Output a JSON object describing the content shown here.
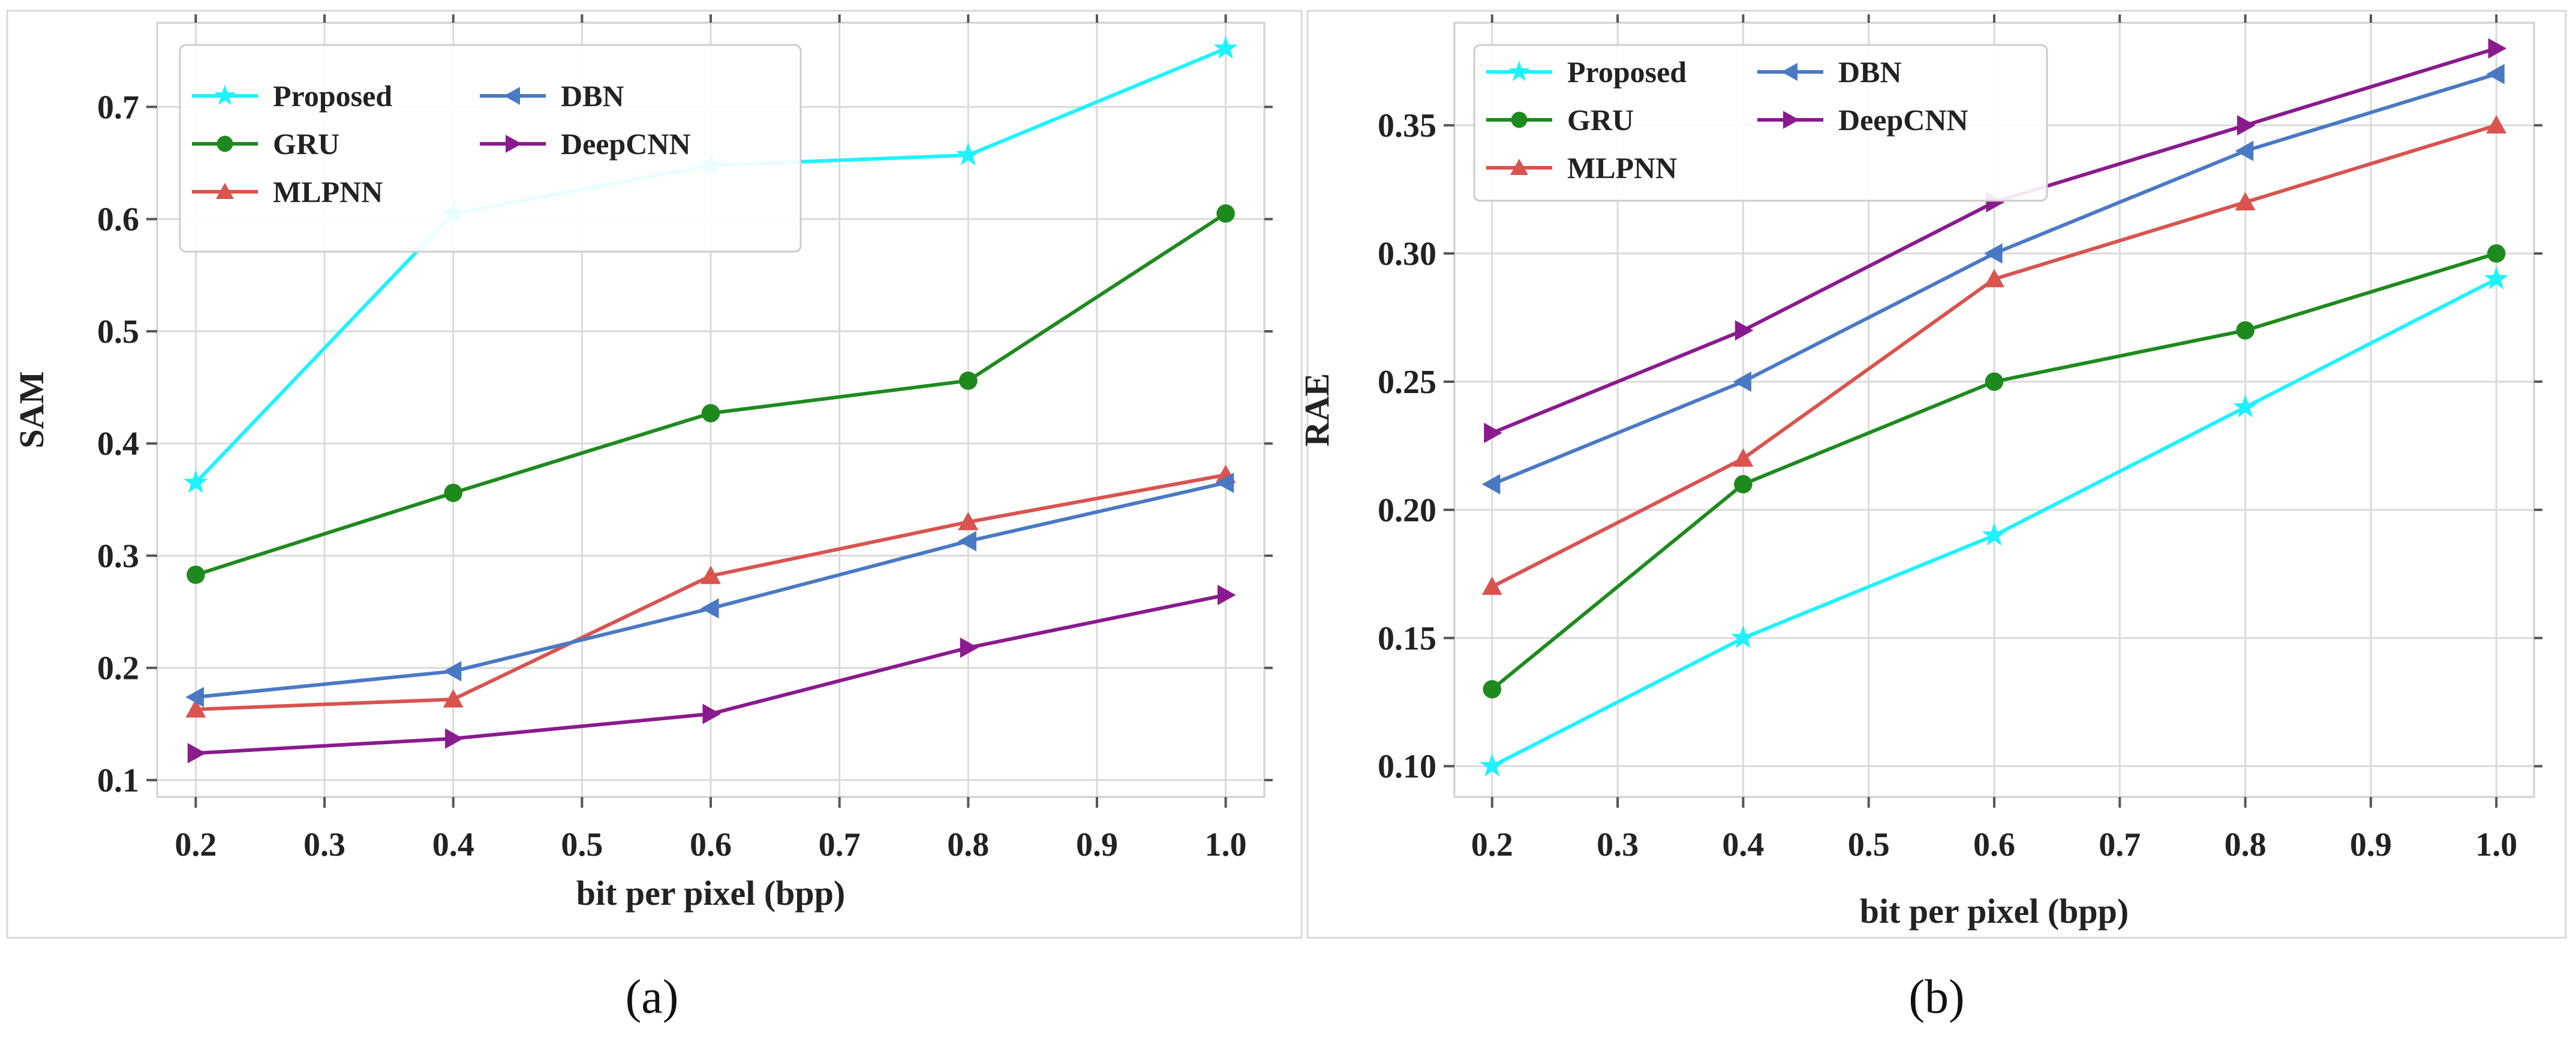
{
  "chart_data": [
    {
      "type": "line",
      "caption": "(a)",
      "xlabel": "bit per pixel (bpp)",
      "ylabel": "SAM",
      "x": [
        0.2,
        0.4,
        0.6,
        0.8,
        1.0
      ],
      "xticks": [
        "0.2",
        "0.3",
        "0.4",
        "0.5",
        "0.6",
        "0.7",
        "0.8",
        "0.9",
        "1.0"
      ],
      "xlim": [
        0.17,
        1.03
      ],
      "yticks": [
        "0.1",
        "0.2",
        "0.3",
        "0.4",
        "0.5",
        "0.6",
        "0.7"
      ],
      "ylim": [
        0.085,
        0.775
      ],
      "grid": true,
      "legend": "top-left",
      "series": [
        {
          "name": "Proposed",
          "color": "#1ef2ff",
          "marker": "star",
          "values": [
            0.365,
            0.605,
            0.648,
            0.657,
            0.752
          ]
        },
        {
          "name": "GRU",
          "color": "#1e8a1e",
          "marker": "circle",
          "values": [
            0.283,
            0.356,
            0.427,
            0.456,
            0.605
          ]
        },
        {
          "name": "MLPNN",
          "color": "#d9534f",
          "marker": "triangle-up",
          "values": [
            0.163,
            0.172,
            0.282,
            0.33,
            0.372
          ]
        },
        {
          "name": "DBN",
          "color": "#4a79c4",
          "marker": "triangle-left",
          "values": [
            0.174,
            0.197,
            0.253,
            0.313,
            0.365
          ]
        },
        {
          "name": "DeepCNN",
          "color": "#8a1a8e",
          "marker": "triangle-right",
          "values": [
            0.124,
            0.137,
            0.159,
            0.218,
            0.265
          ]
        }
      ]
    },
    {
      "type": "line",
      "caption": "(b)",
      "xlabel": "bit per pixel (bpp)",
      "ylabel": "RAE",
      "x": [
        0.2,
        0.4,
        0.6,
        0.8,
        1.0
      ],
      "xticks": [
        "0.2",
        "0.3",
        "0.4",
        "0.5",
        "0.6",
        "0.7",
        "0.8",
        "0.9",
        "1.0"
      ],
      "xlim": [
        0.17,
        1.03
      ],
      "yticks": [
        "0.10",
        "0.15",
        "0.20",
        "0.25",
        "0.30",
        "0.35"
      ],
      "ylim": [
        0.088,
        0.39
      ],
      "grid": true,
      "legend": "top-left",
      "series": [
        {
          "name": "Proposed",
          "color": "#1ef2ff",
          "marker": "star",
          "values": [
            0.1,
            0.15,
            0.19,
            0.24,
            0.29
          ]
        },
        {
          "name": "GRU",
          "color": "#1e8a1e",
          "marker": "circle",
          "values": [
            0.13,
            0.21,
            0.25,
            0.27,
            0.3
          ]
        },
        {
          "name": "MLPNN",
          "color": "#d9534f",
          "marker": "triangle-up",
          "values": [
            0.17,
            0.22,
            0.29,
            0.32,
            0.35
          ]
        },
        {
          "name": "DBN",
          "color": "#4a79c4",
          "marker": "triangle-left",
          "values": [
            0.21,
            0.25,
            0.3,
            0.34,
            0.37
          ]
        },
        {
          "name": "DeepCNN",
          "color": "#8a1a8e",
          "marker": "triangle-right",
          "values": [
            0.23,
            0.27,
            0.32,
            0.35,
            0.38
          ]
        }
      ]
    }
  ]
}
